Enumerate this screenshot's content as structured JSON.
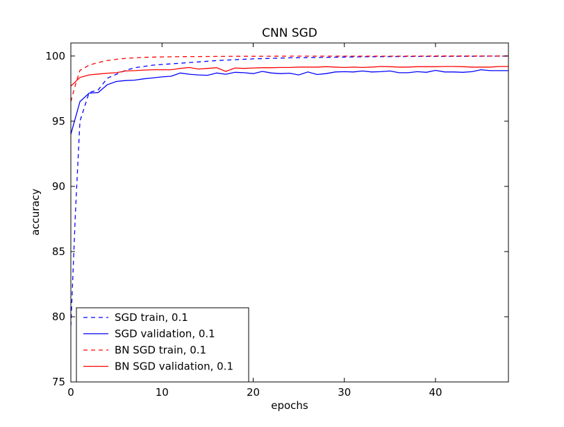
{
  "chart_data": {
    "type": "line",
    "title": "CNN SGD",
    "xlabel": "epochs",
    "ylabel": "accuracy",
    "xlim": [
      0,
      48
    ],
    "ylim": [
      75,
      101
    ],
    "xticks": [
      0,
      10,
      20,
      30,
      40
    ],
    "yticks": [
      75,
      80,
      85,
      90,
      95,
      100
    ],
    "grid": false,
    "legend_position": "lower-left",
    "series": [
      {
        "name": "SGD train, 0.1",
        "color": "#0000ff",
        "dash": "dashed",
        "x": [
          0,
          0.5,
          1,
          2,
          3,
          4,
          5,
          6,
          7,
          8,
          9,
          10,
          12,
          14,
          16,
          18,
          20,
          22,
          24,
          26,
          28,
          30,
          32,
          34,
          36,
          38,
          40,
          42,
          44,
          46,
          48
        ],
        "y": [
          79.3,
          88.0,
          95.0,
          97.2,
          97.4,
          98.3,
          98.6,
          98.9,
          99.1,
          99.2,
          99.3,
          99.35,
          99.45,
          99.55,
          99.65,
          99.72,
          99.78,
          99.82,
          99.86,
          99.88,
          99.9,
          99.92,
          99.94,
          99.95,
          99.96,
          99.97,
          99.97,
          99.98,
          99.98,
          99.99,
          99.99
        ]
      },
      {
        "name": "SGD validation, 0.1",
        "color": "#0000ff",
        "dash": "solid",
        "x": [
          0,
          1,
          2,
          3,
          4,
          5,
          6,
          7,
          8,
          9,
          10,
          11,
          12,
          13,
          14,
          15,
          16,
          17,
          18,
          19,
          20,
          21,
          22,
          23,
          24,
          25,
          26,
          27,
          28,
          29,
          30,
          31,
          32,
          33,
          34,
          35,
          36,
          37,
          38,
          39,
          40,
          41,
          42,
          43,
          44,
          45,
          46,
          47,
          48
        ],
        "y": [
          94.0,
          96.5,
          97.15,
          97.2,
          97.8,
          98.05,
          98.12,
          98.15,
          98.25,
          98.32,
          98.4,
          98.45,
          98.7,
          98.6,
          98.55,
          98.52,
          98.7,
          98.6,
          98.75,
          98.72,
          98.65,
          98.82,
          98.7,
          98.65,
          98.68,
          98.55,
          98.78,
          98.58,
          98.65,
          98.78,
          98.8,
          98.78,
          98.85,
          98.78,
          98.8,
          98.85,
          98.72,
          98.72,
          98.8,
          98.75,
          98.9,
          98.78,
          98.78,
          98.75,
          98.8,
          98.95,
          98.88,
          98.88,
          98.88
        ]
      },
      {
        "name": "BN SGD train, 0.1",
        "color": "#ff0000",
        "dash": "dashed",
        "x": [
          0,
          0.5,
          1,
          2,
          3,
          4,
          5,
          6,
          7,
          8,
          10,
          12,
          14,
          16,
          18,
          20,
          24,
          28,
          32,
          36,
          40,
          44,
          48
        ],
        "y": [
          96.5,
          97.8,
          98.9,
          99.3,
          99.5,
          99.65,
          99.75,
          99.82,
          99.86,
          99.9,
          99.93,
          99.95,
          99.96,
          99.97,
          99.98,
          99.98,
          99.99,
          99.99,
          99.99,
          99.99,
          100.0,
          100.0,
          100.0
        ]
      },
      {
        "name": "BN SGD validation, 0.1",
        "color": "#ff0000",
        "dash": "solid",
        "x": [
          0,
          1,
          2,
          3,
          4,
          5,
          6,
          7,
          8,
          9,
          10,
          11,
          12,
          13,
          14,
          15,
          16,
          17,
          18,
          19,
          20,
          21,
          22,
          23,
          24,
          25,
          26,
          27,
          28,
          29,
          30,
          31,
          32,
          33,
          34,
          35,
          36,
          37,
          38,
          39,
          40,
          41,
          42,
          43,
          44,
          45,
          46,
          47,
          48
        ],
        "y": [
          97.7,
          98.35,
          98.55,
          98.62,
          98.68,
          98.72,
          98.85,
          98.88,
          98.92,
          98.95,
          98.95,
          98.95,
          99.05,
          99.12,
          99.0,
          99.05,
          99.1,
          98.82,
          99.08,
          99.05,
          99.08,
          99.1,
          99.1,
          99.12,
          99.12,
          99.15,
          99.15,
          99.15,
          99.18,
          99.15,
          99.12,
          99.15,
          99.12,
          99.15,
          99.2,
          99.18,
          99.15,
          99.15,
          99.18,
          99.18,
          99.18,
          99.2,
          99.2,
          99.18,
          99.15,
          99.15,
          99.15,
          99.2,
          99.2
        ]
      }
    ]
  }
}
